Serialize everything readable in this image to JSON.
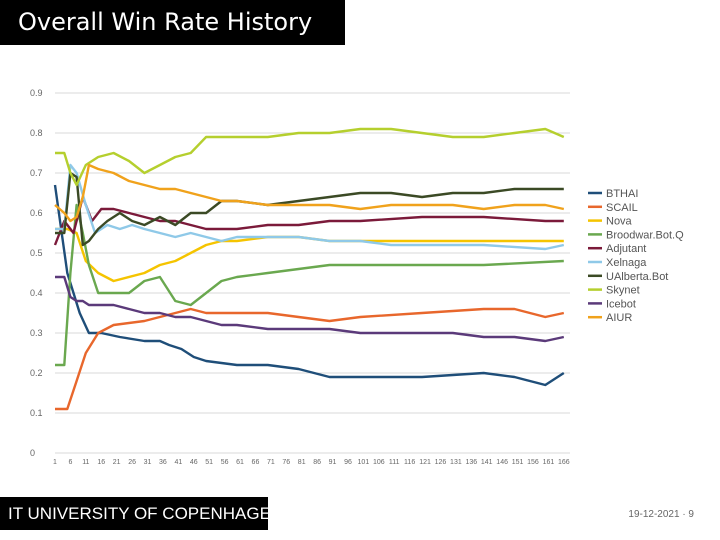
{
  "slide": {
    "title": "Overall Win Rate History",
    "footer": "IT UNIVERSITY OF COPENHAGEN",
    "date_page": "19-12-2021 · 9"
  },
  "chart_data": {
    "type": "line",
    "title": "Overall Win Rate History",
    "xlabel": "",
    "ylabel": "",
    "ylim": [
      0,
      0.9
    ],
    "yticks": [
      "0",
      "0.1",
      "0.2",
      "0.3",
      "0.4",
      "0.5",
      "0.6",
      "0.7",
      "0.8",
      "0.9"
    ],
    "xticks": [
      "1",
      "6",
      "11",
      "16",
      "21",
      "26",
      "31",
      "36",
      "41",
      "46",
      "51",
      "56",
      "61",
      "66",
      "71",
      "76",
      "81",
      "86",
      "91",
      "96",
      "101",
      "106",
      "111",
      "116",
      "121",
      "126",
      "131",
      "136",
      "141",
      "146",
      "151",
      "156",
      "161",
      "166"
    ],
    "grid": true,
    "legend_position": "right",
    "series": [
      {
        "name": "BTHAI",
        "color": "#1f4e79",
        "x": [
          1,
          5,
          9,
          12,
          16,
          22,
          30,
          35,
          38,
          42,
          46,
          50,
          60,
          70,
          80,
          90,
          100,
          120,
          140,
          150,
          155,
          160,
          166
        ],
        "y": [
          0.67,
          0.45,
          0.35,
          0.3,
          0.3,
          0.29,
          0.28,
          0.28,
          0.27,
          0.26,
          0.24,
          0.23,
          0.22,
          0.22,
          0.21,
          0.19,
          0.19,
          0.19,
          0.2,
          0.19,
          0.18,
          0.17,
          0.2
        ]
      },
      {
        "name": "SCAIL",
        "color": "#e8672c",
        "x": [
          1,
          5,
          8,
          11,
          15,
          20,
          30,
          40,
          45,
          50,
          60,
          70,
          80,
          90,
          100,
          120,
          140,
          150,
          160,
          166
        ],
        "y": [
          0.11,
          0.11,
          0.18,
          0.25,
          0.3,
          0.32,
          0.33,
          0.35,
          0.36,
          0.35,
          0.35,
          0.35,
          0.34,
          0.33,
          0.34,
          0.35,
          0.36,
          0.36,
          0.34,
          0.35
        ]
      },
      {
        "name": "Nova",
        "color": "#f5c400",
        "x": [
          1,
          5,
          8,
          11,
          15,
          20,
          30,
          35,
          40,
          45,
          50,
          55,
          60,
          70,
          80,
          90,
          100,
          120,
          140,
          166
        ],
        "y": [
          0.56,
          0.56,
          0.55,
          0.48,
          0.45,
          0.43,
          0.45,
          0.47,
          0.48,
          0.5,
          0.52,
          0.53,
          0.53,
          0.54,
          0.54,
          0.53,
          0.53,
          0.53,
          0.53,
          0.53
        ]
      },
      {
        "name": "Broodwar.Bot.Q",
        "color": "#6aa84f",
        "x": [
          1,
          4,
          6,
          8,
          10,
          12,
          15,
          20,
          25,
          30,
          35,
          40,
          45,
          50,
          55,
          60,
          70,
          80,
          90,
          100,
          120,
          140,
          166
        ],
        "y": [
          0.22,
          0.22,
          0.45,
          0.62,
          0.55,
          0.47,
          0.4,
          0.4,
          0.4,
          0.43,
          0.44,
          0.38,
          0.37,
          0.4,
          0.43,
          0.44,
          0.45,
          0.46,
          0.47,
          0.47,
          0.47,
          0.47,
          0.48
        ]
      },
      {
        "name": "Adjutant",
        "color": "#7b1a3a",
        "x": [
          1,
          4,
          7,
          10,
          13,
          16,
          20,
          25,
          30,
          35,
          40,
          45,
          50,
          60,
          70,
          80,
          90,
          100,
          120,
          140,
          160,
          166
        ],
        "y": [
          0.52,
          0.58,
          0.55,
          0.64,
          0.58,
          0.61,
          0.61,
          0.6,
          0.59,
          0.58,
          0.58,
          0.57,
          0.56,
          0.56,
          0.57,
          0.57,
          0.58,
          0.58,
          0.59,
          0.59,
          0.58,
          0.58
        ]
      },
      {
        "name": "Xelnaga",
        "color": "#8fc9e8",
        "x": [
          1,
          4,
          6,
          8,
          11,
          14,
          18,
          22,
          26,
          30,
          35,
          40,
          45,
          50,
          55,
          60,
          70,
          80,
          90,
          100,
          110,
          120,
          140,
          160,
          166
        ],
        "y": [
          0.56,
          0.56,
          0.72,
          0.7,
          0.62,
          0.55,
          0.57,
          0.56,
          0.57,
          0.56,
          0.55,
          0.54,
          0.55,
          0.54,
          0.53,
          0.54,
          0.54,
          0.54,
          0.53,
          0.53,
          0.52,
          0.52,
          0.52,
          0.51,
          0.52
        ]
      },
      {
        "name": "UAlberta.Bot",
        "color": "#3b4a25",
        "x": [
          1,
          4,
          6,
          8,
          10,
          12,
          15,
          18,
          22,
          26,
          30,
          35,
          40,
          45,
          50,
          55,
          60,
          70,
          80,
          90,
          100,
          110,
          120,
          130,
          140,
          150,
          160,
          166
        ],
        "y": [
          0.55,
          0.55,
          0.7,
          0.69,
          0.52,
          0.53,
          0.56,
          0.58,
          0.6,
          0.58,
          0.57,
          0.59,
          0.57,
          0.6,
          0.6,
          0.63,
          0.63,
          0.62,
          0.63,
          0.64,
          0.65,
          0.65,
          0.64,
          0.65,
          0.65,
          0.66,
          0.66,
          0.66
        ]
      },
      {
        "name": "Skynet",
        "color": "#b5cf2e",
        "x": [
          1,
          4,
          6,
          8,
          11,
          15,
          20,
          25,
          30,
          35,
          40,
          45,
          50,
          55,
          60,
          70,
          80,
          90,
          100,
          110,
          120,
          130,
          140,
          150,
          160,
          163,
          166
        ],
        "y": [
          0.75,
          0.75,
          0.7,
          0.67,
          0.72,
          0.74,
          0.75,
          0.73,
          0.7,
          0.72,
          0.74,
          0.75,
          0.79,
          0.79,
          0.79,
          0.79,
          0.8,
          0.8,
          0.81,
          0.81,
          0.8,
          0.79,
          0.79,
          0.8,
          0.81,
          0.8,
          0.79
        ]
      },
      {
        "name": "Icebot",
        "color": "#5b3a7a",
        "x": [
          1,
          4,
          6,
          8,
          10,
          12,
          15,
          20,
          25,
          30,
          35,
          40,
          45,
          50,
          55,
          60,
          70,
          80,
          90,
          100,
          110,
          120,
          130,
          140,
          150,
          160,
          166
        ],
        "y": [
          0.44,
          0.44,
          0.39,
          0.38,
          0.38,
          0.37,
          0.37,
          0.37,
          0.36,
          0.35,
          0.35,
          0.34,
          0.34,
          0.33,
          0.32,
          0.32,
          0.31,
          0.31,
          0.31,
          0.3,
          0.3,
          0.3,
          0.3,
          0.29,
          0.29,
          0.28,
          0.29
        ]
      },
      {
        "name": "AIUR",
        "color": "#f0a21c",
        "x": [
          1,
          4,
          6,
          8,
          10,
          12,
          15,
          20,
          25,
          30,
          35,
          40,
          45,
          50,
          55,
          60,
          70,
          80,
          90,
          100,
          110,
          120,
          130,
          140,
          150,
          160,
          166
        ],
        "y": [
          0.62,
          0.6,
          0.58,
          0.59,
          0.64,
          0.72,
          0.71,
          0.7,
          0.68,
          0.67,
          0.66,
          0.66,
          0.65,
          0.64,
          0.63,
          0.63,
          0.62,
          0.62,
          0.62,
          0.61,
          0.62,
          0.62,
          0.62,
          0.61,
          0.62,
          0.62,
          0.61
        ]
      }
    ]
  }
}
